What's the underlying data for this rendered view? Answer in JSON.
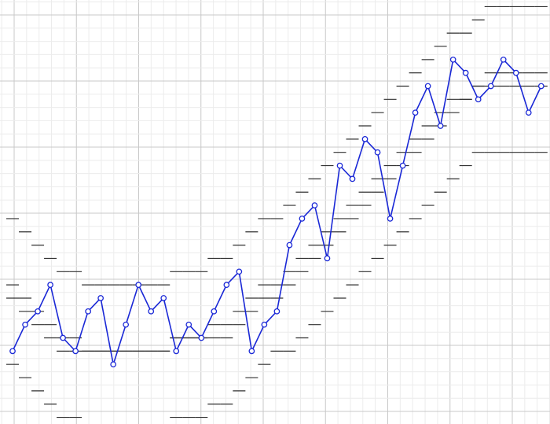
{
  "chart_data": {
    "type": "line",
    "grid": true,
    "legend": "none",
    "xlim": [
      -1,
      42.7
    ],
    "ylim": [
      10.5,
      42.5
    ],
    "series": [
      {
        "values": [
          16,
          18,
          19,
          21,
          17,
          16,
          19,
          20,
          15,
          18,
          21,
          19,
          20,
          16,
          18,
          17,
          19,
          21,
          22,
          16,
          18,
          19,
          24,
          26,
          27,
          23,
          30,
          29,
          32,
          31,
          26,
          30,
          34,
          36,
          33,
          38,
          37,
          35,
          36,
          38,
          37,
          34,
          36
        ],
        "color": "#1a28d6"
      }
    ],
    "bands": [
      {
        "name": "upper",
        "values": [
          26,
          25,
          24,
          23,
          22,
          22,
          21,
          21,
          21,
          21,
          21,
          21,
          21,
          22,
          22,
          22,
          23,
          23,
          24,
          25,
          26,
          26,
          27,
          28,
          29,
          30,
          31,
          32,
          33,
          34,
          35,
          36,
          37,
          38,
          39,
          40,
          40,
          41,
          42,
          42,
          42,
          42,
          42
        ]
      },
      {
        "name": "lower",
        "values": [
          15,
          14,
          13,
          12,
          11,
          11,
          10,
          10,
          10,
          10,
          10,
          10,
          10,
          11,
          11,
          11,
          12,
          12,
          13,
          14,
          15,
          16,
          16,
          17,
          18,
          19,
          20,
          21,
          22,
          23,
          24,
          25,
          26,
          27,
          28,
          29,
          30,
          31,
          31,
          31,
          31,
          31,
          31
        ]
      },
      {
        "name": "middle-upper",
        "values": [
          21,
          20,
          19,
          18,
          17,
          17,
          16,
          16,
          16,
          16,
          16,
          16,
          16,
          17,
          17,
          17,
          18,
          18,
          19,
          20,
          21,
          21,
          22,
          23,
          24,
          25,
          26,
          27,
          28,
          29,
          30,
          31,
          32,
          33,
          34,
          35,
          35,
          36,
          37,
          37,
          37,
          37,
          37
        ]
      },
      {
        "name": "middle-lower",
        "values": [
          20,
          19,
          18,
          17,
          16,
          16,
          16,
          16,
          16,
          16,
          16,
          16,
          16,
          17,
          17,
          17,
          17,
          17,
          18,
          19,
          20,
          20,
          21,
          22,
          23,
          24,
          25,
          26,
          27,
          28,
          29,
          30,
          31,
          32,
          33,
          34,
          35,
          36,
          36,
          36,
          36,
          36,
          36
        ]
      }
    ]
  }
}
